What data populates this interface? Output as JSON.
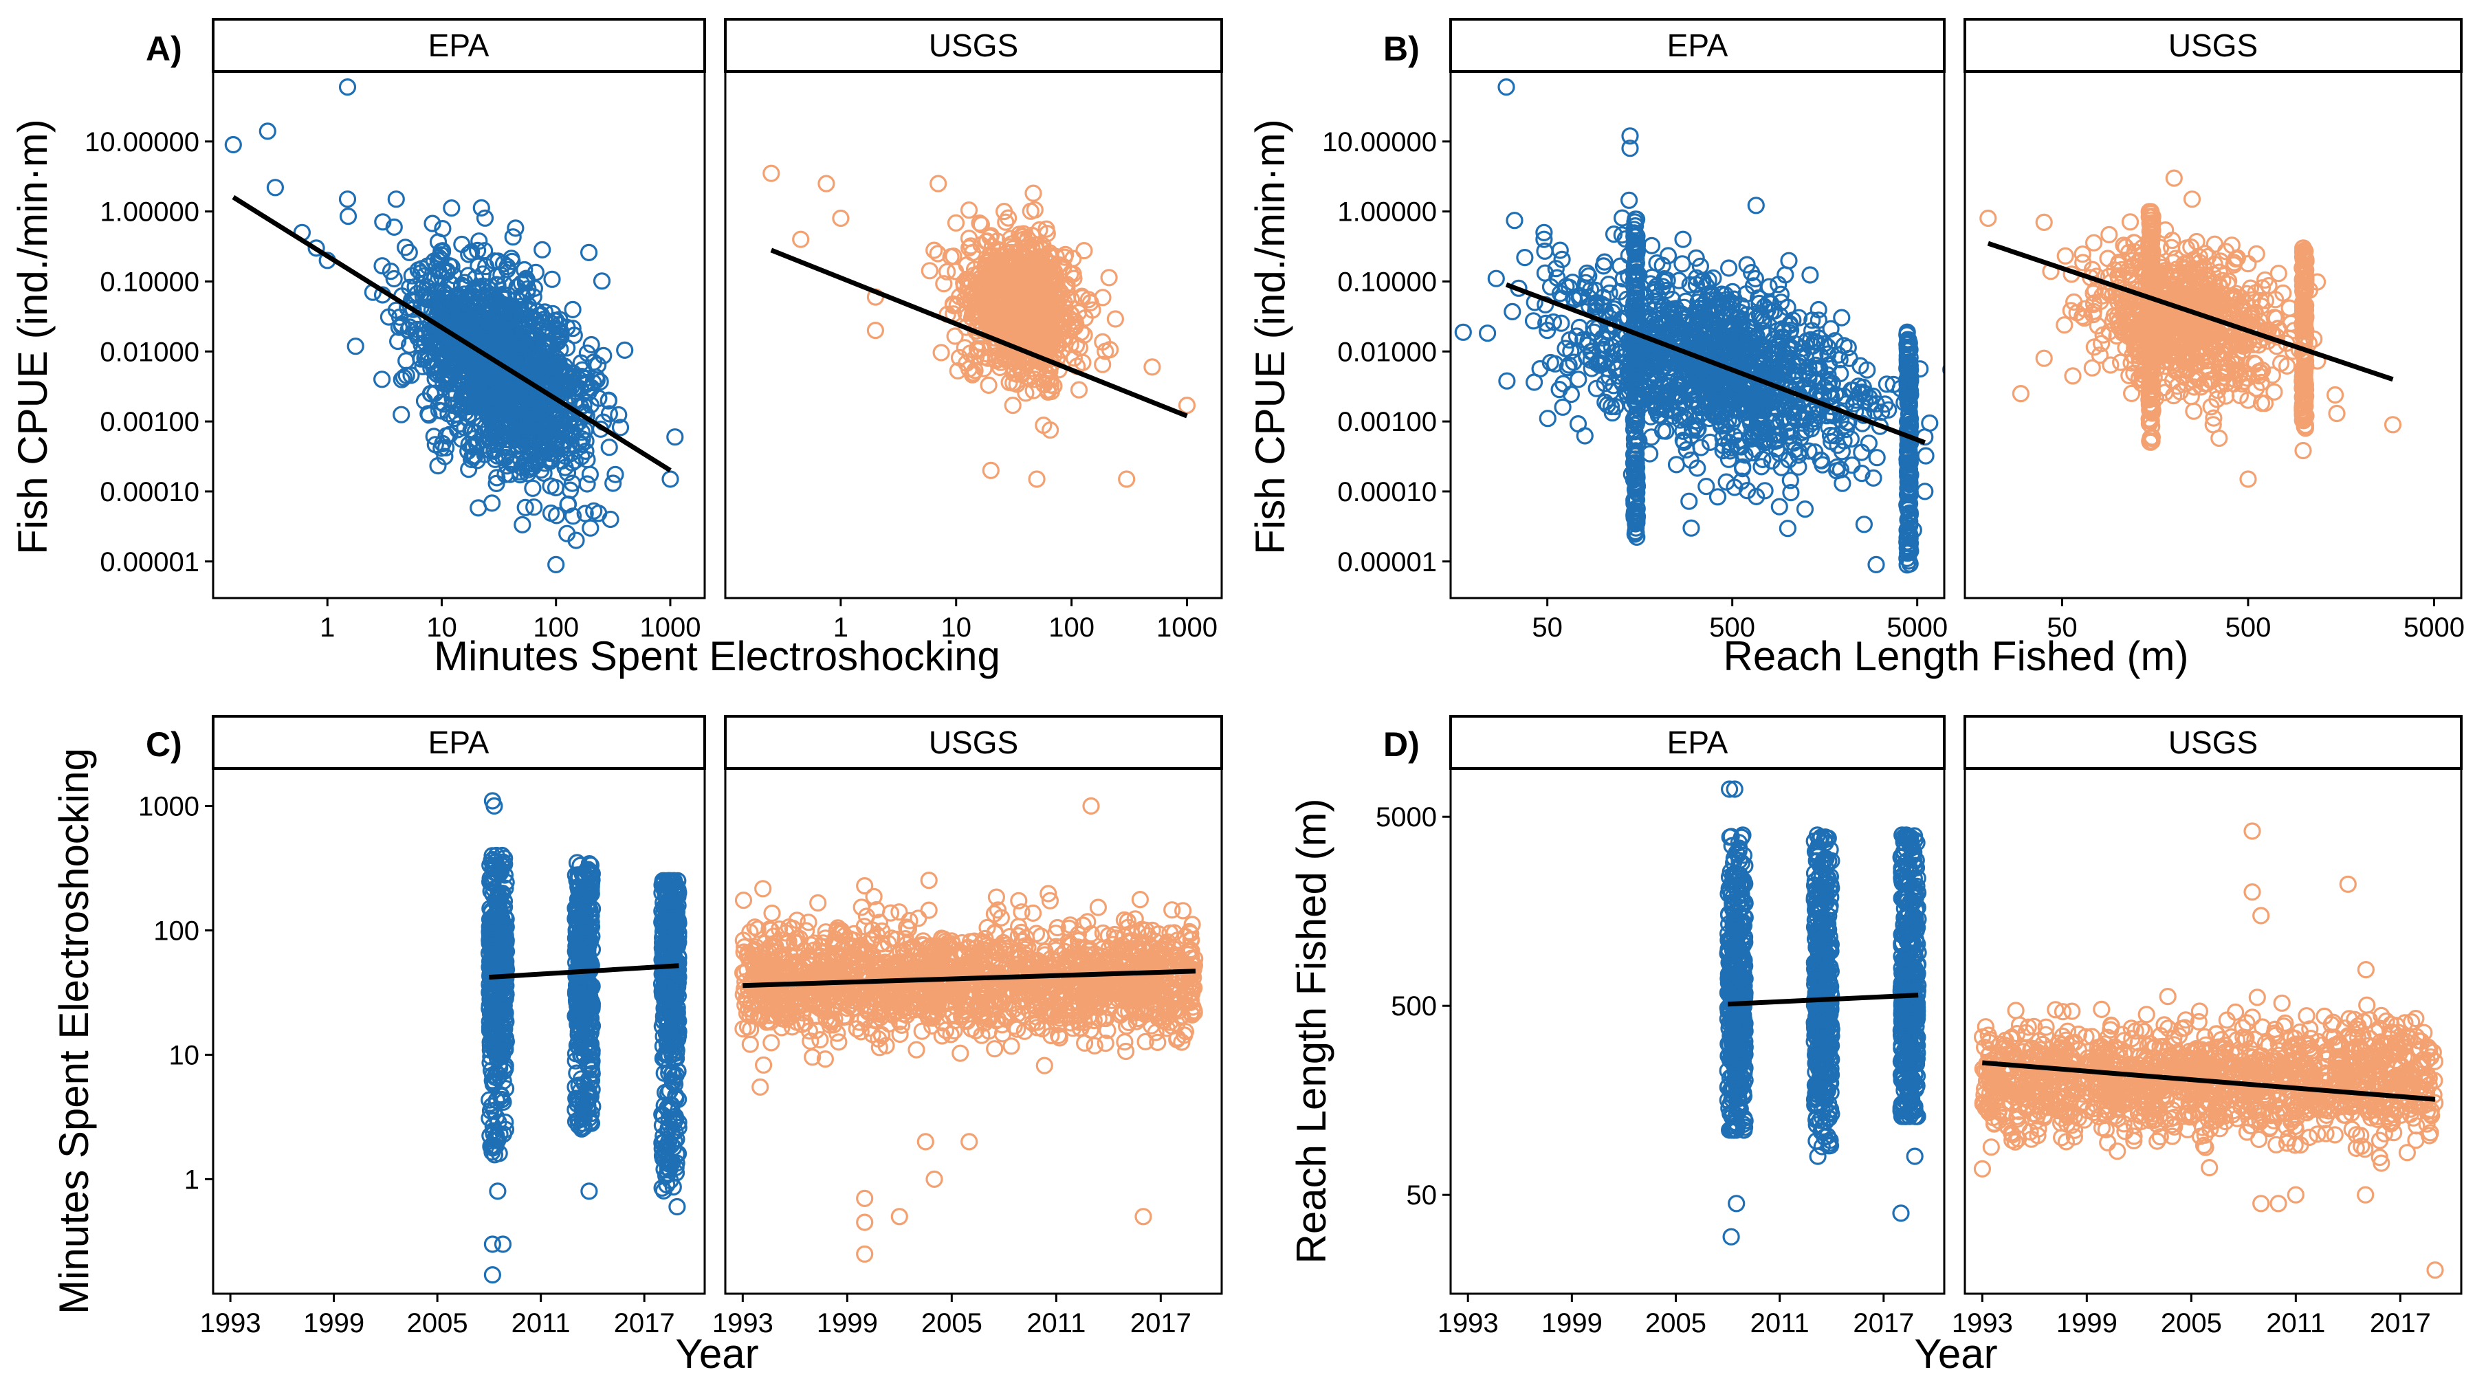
{
  "colors": {
    "epa": "#1f6fb5",
    "usgs": "#f4a172",
    "fit": "#000000"
  },
  "chart_data": [
    {
      "panel_label": "A)",
      "type": "scatter",
      "facets": [
        "EPA",
        "USGS"
      ],
      "xlabel": "Minutes Spent Electroshocking",
      "ylabel": "Fish CPUE (ind./min·m)",
      "x_scale": "log",
      "y_scale": "log",
      "xlim": [
        0.1,
        2000
      ],
      "ylim": [
        3e-06,
        100
      ],
      "x_ticks": [
        1,
        10,
        100,
        1000
      ],
      "x_tick_labels": [
        "1",
        "10",
        "100",
        "1000"
      ],
      "y_ticks": [
        1e-05,
        0.0001,
        0.001,
        0.01,
        0.1,
        1,
        10
      ],
      "y_tick_labels": [
        "0.00001",
        "0.00010",
        "0.00100",
        "0.01000",
        "0.10000",
        "1.00000",
        "10.00000"
      ],
      "series": [
        {
          "facet": "EPA",
          "color": "#1f6fb5",
          "outliers": [
            [
              0.15,
              9
            ],
            [
              0.3,
              14
            ],
            [
              1.5,
              60
            ],
            [
              0.35,
              2.2
            ],
            [
              0.6,
              0.5
            ],
            [
              1,
              0.2
            ],
            [
              1.5,
              1.5
            ],
            [
              0.8,
              0.3
            ],
            [
              2.5,
              0.07
            ],
            [
              3,
              0.004
            ],
            [
              4,
              1.5
            ],
            [
              200,
              3e-05
            ],
            [
              300,
              4e-05
            ],
            [
              1100,
              0.0006
            ],
            [
              1000,
              0.00015
            ],
            [
              100,
              9e-06
            ],
            [
              150,
              2e-05
            ]
          ],
          "cloud": {
            "log10_x_center": 1.5,
            "log10_y_center": -2.2,
            "sd_log10_x": 0.38,
            "sd_log10_y": 0.75,
            "correlation": -0.45,
            "n_points": 1500
          },
          "fit": [
            [
              0.15,
              1.6
            ],
            [
              1000,
              0.0002
            ]
          ]
        },
        {
          "facet": "USGS",
          "color": "#f4a172",
          "outliers": [
            [
              0.25,
              3.5
            ],
            [
              0.45,
              0.4
            ],
            [
              0.75,
              2.5
            ],
            [
              1,
              0.8
            ],
            [
              2,
              0.06
            ],
            [
              2,
              0.02
            ],
            [
              1000,
              0.0017
            ],
            [
              300,
              0.00015
            ],
            [
              20,
              0.0002
            ],
            [
              50,
              0.00015
            ],
            [
              500,
              0.006
            ],
            [
              7,
              2.5
            ]
          ],
          "cloud": {
            "log10_x_center": 1.55,
            "log10_y_center": -1.35,
            "sd_log10_x": 0.25,
            "sd_log10_y": 0.5,
            "correlation": -0.1,
            "n_points": 900
          },
          "fit": [
            [
              0.25,
              0.28
            ],
            [
              1000,
              0.0012
            ]
          ]
        }
      ]
    },
    {
      "panel_label": "B)",
      "type": "scatter",
      "facets": [
        "EPA",
        "USGS"
      ],
      "xlabel": "Reach Length Fished (m)",
      "ylabel": "Fish CPUE (ind./min·m)",
      "x_scale": "log",
      "y_scale": "log",
      "xlim": [
        15,
        7000
      ],
      "ylim": [
        3e-06,
        100
      ],
      "x_ticks": [
        50,
        500,
        5000
      ],
      "x_tick_labels": [
        "50",
        "500",
        "5000"
      ],
      "y_ticks": [
        1e-05,
        0.0001,
        0.001,
        0.01,
        0.1,
        1,
        10
      ],
      "y_tick_labels": [
        "0.00001",
        "0.00010",
        "0.00100",
        "0.01000",
        "0.10000",
        "1.00000",
        "10.00000"
      ],
      "series": [
        {
          "facet": "EPA",
          "color": "#1f6fb5",
          "outliers": [
            [
              30,
              60
            ],
            [
              35,
              0.08
            ],
            [
              48,
              0.5
            ],
            [
              48,
              0.4
            ],
            [
              50,
              0.02
            ],
            [
              140,
              12
            ],
            [
              140,
              8
            ],
            [
              3000,
              9e-06
            ],
            [
              5500,
              0.0006
            ],
            [
              5500,
              0.0001
            ],
            [
              300,
              3e-05
            ]
          ],
          "columns": [
            {
              "x": 150,
              "y_min": 2e-05,
              "y_max": 0.8
            },
            {
              "x": 4500,
              "y_min": 8e-06,
              "y_max": 0.02
            }
          ],
          "cloud": {
            "log10_x_center": 2.6,
            "log10_y_center": -2.2,
            "sd_log10_x": 0.4,
            "sd_log10_y": 0.7,
            "correlation": -0.4,
            "n_points": 1200
          },
          "fit": [
            [
              30,
              0.09
            ],
            [
              5500,
              0.0005
            ]
          ]
        },
        {
          "facet": "USGS",
          "color": "#f4a172",
          "outliers": [
            [
              20,
              0.8
            ],
            [
              40,
              0.7
            ],
            [
              40,
              0.008
            ],
            [
              30,
              0.0025
            ],
            [
              500,
              0.00015
            ],
            [
              1500,
              0.0013
            ],
            [
              3000,
              0.0009
            ],
            [
              200,
              3
            ],
            [
              250,
              1.5
            ]
          ],
          "columns": [
            {
              "x": 150,
              "y_min": 0.0005,
              "y_max": 1
            },
            {
              "x": 1000,
              "y_min": 0.0008,
              "y_max": 0.3
            }
          ],
          "cloud": {
            "log10_x_center": 2.35,
            "log10_y_center": -1.6,
            "sd_log10_x": 0.25,
            "sd_log10_y": 0.5,
            "correlation": -0.2,
            "n_points": 800
          },
          "fit": [
            [
              20,
              0.35
            ],
            [
              3000,
              0.004
            ]
          ]
        }
      ]
    },
    {
      "panel_label": "C)",
      "type": "scatter",
      "facets": [
        "EPA",
        "USGS"
      ],
      "xlabel": "Year",
      "ylabel": "Minutes Spent Electroshocking",
      "x_scale": "linear",
      "y_scale": "log",
      "xlim": [
        1992,
        2020.5
      ],
      "ylim": [
        0.12,
        2000
      ],
      "x_ticks": [
        1993,
        1999,
        2005,
        2011,
        2017
      ],
      "x_tick_labels": [
        "1993",
        "1999",
        "2005",
        "2011",
        "2017"
      ],
      "y_ticks": [
        1,
        10,
        100,
        1000
      ],
      "y_tick_labels": [
        "1",
        "10",
        "100",
        "1000"
      ],
      "series": [
        {
          "facet": "EPA",
          "color": "#1f6fb5",
          "columns": [
            {
              "x_min": 2008,
              "x_max": 2009,
              "y_min": 1.5,
              "y_max": 400,
              "center": 55
            },
            {
              "x_min": 2013,
              "x_max": 2014,
              "y_min": 2.5,
              "y_max": 350,
              "center": 55
            },
            {
              "x_min": 2018,
              "x_max": 2019,
              "y_min": 0.8,
              "y_max": 250,
              "center": 60
            }
          ],
          "outliers": [
            [
              2008.2,
              1100
            ],
            [
              2008.3,
              1000
            ],
            [
              2008.2,
              0.3
            ],
            [
              2008.2,
              0.17
            ],
            [
              2008.5,
              0.8
            ],
            [
              2008.8,
              0.3
            ],
            [
              2013.8,
              0.8
            ],
            [
              2018.3,
              0.9
            ],
            [
              2018.9,
              0.6
            ],
            [
              2018.7,
              1.8
            ]
          ],
          "fit": [
            [
              2008,
              42
            ],
            [
              2019,
              52
            ]
          ]
        },
        {
          "facet": "USGS",
          "color": "#f4a172",
          "band": {
            "x_min": 1993,
            "x_max": 2019,
            "y_center": 40,
            "sd_log10_y": 0.22,
            "n_points": 1600
          },
          "outliers": [
            [
              1994,
              5.5
            ],
            [
              2000,
              0.7
            ],
            [
              2000,
              0.45
            ],
            [
              2000,
              0.25
            ],
            [
              2002,
              0.5
            ],
            [
              2003.5,
              2
            ],
            [
              2004,
              1
            ],
            [
              2006,
              2
            ],
            [
              2013,
              1000
            ],
            [
              2016,
              0.5
            ]
          ],
          "fit": [
            [
              1993,
              36
            ],
            [
              2019,
              47
            ]
          ]
        }
      ]
    },
    {
      "panel_label": "D)",
      "type": "scatter",
      "facets": [
        "EPA",
        "USGS"
      ],
      "xlabel": "Year",
      "ylabel": "Reach Length Fished (m)",
      "x_scale": "linear",
      "y_scale": "log",
      "xlim": [
        1992,
        2020.5
      ],
      "ylim": [
        15,
        9000
      ],
      "x_ticks": [
        1993,
        1999,
        2005,
        2011,
        2017
      ],
      "x_tick_labels": [
        "1993",
        "1999",
        "2005",
        "2011",
        "2017"
      ],
      "y_ticks": [
        50,
        500,
        5000
      ],
      "y_tick_labels": [
        "50",
        "500",
        "5000"
      ],
      "series": [
        {
          "facet": "EPA",
          "color": "#1f6fb5",
          "columns": [
            {
              "x_min": 2008,
              "x_max": 2009,
              "y_min": 110,
              "y_max": 4000,
              "center": 500
            },
            {
              "x_min": 2013,
              "x_max": 2014,
              "y_min": 90,
              "y_max": 4000,
              "center": 500
            },
            {
              "x_min": 2018,
              "x_max": 2019,
              "y_min": 130,
              "y_max": 4000,
              "center": 500
            }
          ],
          "outliers": [
            [
              2008.1,
              7000
            ],
            [
              2008.4,
              7000
            ],
            [
              2008.2,
              30
            ],
            [
              2008.5,
              45
            ],
            [
              2018,
              40
            ],
            [
              2018.8,
              80
            ],
            [
              2013.2,
              80
            ]
          ],
          "fit": [
            [
              2008,
              510
            ],
            [
              2019,
              570
            ]
          ]
        },
        {
          "facet": "USGS",
          "color": "#f4a172",
          "band": {
            "x_min": 1993,
            "x_max": 2019,
            "y_center": 200,
            "sd_log10_y": 0.15,
            "n_points": 1400
          },
          "outliers": [
            [
              2008.5,
              4200
            ],
            [
              2008.5,
              2000
            ],
            [
              2009,
              1500
            ],
            [
              2014,
              2200
            ],
            [
              2009,
              45
            ],
            [
              2010,
              45
            ],
            [
              2011,
              50
            ],
            [
              2015,
              50
            ],
            [
              2019,
              20
            ]
          ],
          "fit": [
            [
              1993,
              250
            ],
            [
              2019,
              160
            ]
          ]
        }
      ]
    }
  ]
}
